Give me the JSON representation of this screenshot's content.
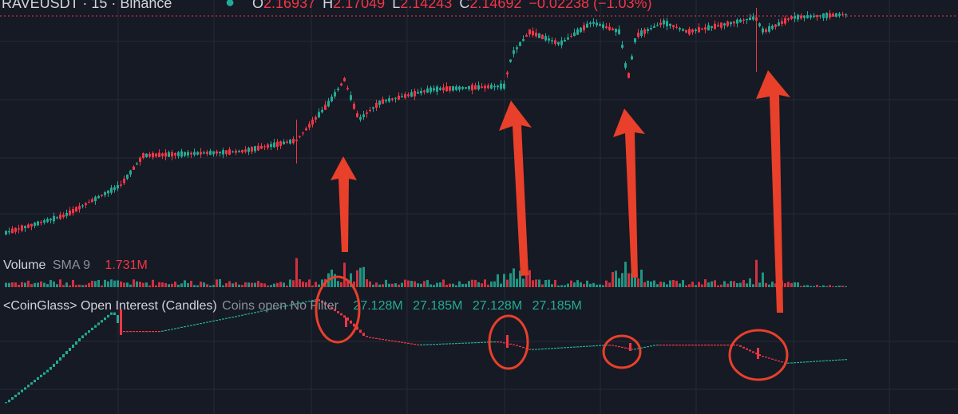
{
  "symbol_header": {
    "title": "RAVEUSDT · 15 · Binance",
    "open_label": "O",
    "open_value": "2.16937",
    "high_label": "H",
    "high_value": "2.17049",
    "low_label": "L",
    "low_value": "2.14243",
    "close_label": "C",
    "close_value": "2.14692",
    "change": "−0.02238 (−1.03%)"
  },
  "volume_pane": {
    "label": "Volume",
    "sma_label": "SMA 9",
    "value": "1.731M"
  },
  "oi_pane": {
    "label": "<CoinGlass> Open Interest (Candles)",
    "mode_label": "Coins open No Filter",
    "v1": "27.128M",
    "v2": "27.185M",
    "v3": "27.128M",
    "v4": "27.185M"
  },
  "colors": {
    "background": "#161a25",
    "up": "#22ab94",
    "down": "#f23645",
    "annotation": "#e8402a"
  }
}
